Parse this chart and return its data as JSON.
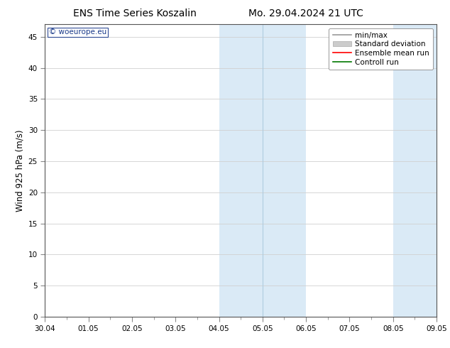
{
  "title_left": "ENS Time Series Koszalin",
  "title_right": "Mo. 29.04.2024 21 UTC",
  "ylabel": "Wind 925 hPa (m/s)",
  "xlim_dates": [
    "30.04",
    "01.05",
    "02.05",
    "03.05",
    "04.05",
    "05.05",
    "06.05",
    "07.05",
    "08.05",
    "09.05"
  ],
  "ylim": [
    0,
    47
  ],
  "yticks": [
    0,
    5,
    10,
    15,
    20,
    25,
    30,
    35,
    40,
    45
  ],
  "shaded_bands": [
    {
      "xstart": 4,
      "xend": 5,
      "color": "#daeaf6"
    },
    {
      "xstart": 5,
      "xend": 6,
      "color": "#daeaf6"
    },
    {
      "xstart": 8,
      "xend": 9,
      "color": "#daeaf6"
    }
  ],
  "band_dividers": [
    5
  ],
  "watermark": "woeurope.eu",
  "watermark_color": "#1a3a8a",
  "bg_color": "#ffffff",
  "plot_bg_color": "#ffffff",
  "grid_color": "#d0d0d0",
  "legend_items": [
    {
      "label": "min/max",
      "color": "#999999",
      "linestyle": "-",
      "linewidth": 1.2
    },
    {
      "label": "Standard deviation",
      "color": "#cccccc",
      "is_patch": true
    },
    {
      "label": "Ensemble mean run",
      "color": "#ff0000",
      "linestyle": "-",
      "linewidth": 1.2
    },
    {
      "label": "Controll run",
      "color": "#007700",
      "linestyle": "-",
      "linewidth": 1.2
    }
  ],
  "tick_fontsize": 7.5,
  "label_fontsize": 8.5,
  "title_fontsize": 10,
  "legend_fontsize": 7.5
}
